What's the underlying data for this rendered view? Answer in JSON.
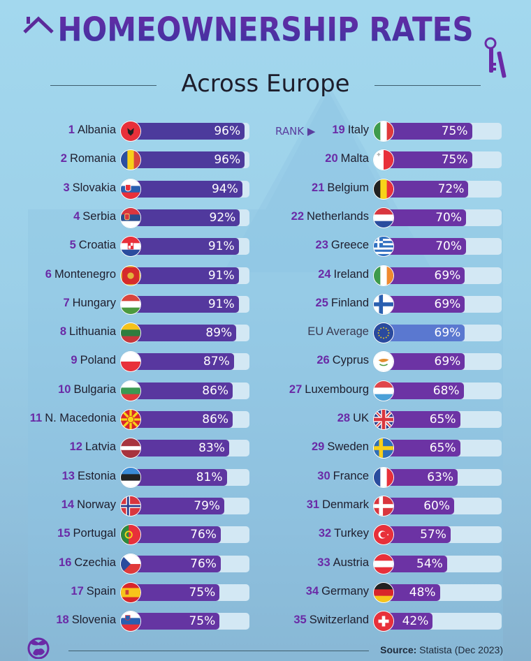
{
  "header": {
    "title": "HOMEOWNERSHIP RATES",
    "subtitle": "Across Europe"
  },
  "rank_hint": "RANK",
  "footer": {
    "source_label": "Source:",
    "source_text": "Statista (Dec 2023)"
  },
  "colors": {
    "bar_top": "#4c3a9c",
    "bar_bottom": "#6c33a4",
    "eu_bar": "#5a78d0",
    "track": "#d3e8f4",
    "rank_number": "#6a2aa6",
    "background": "#9bcfe8"
  },
  "chart_data": {
    "type": "bar",
    "orientation": "horizontal",
    "title": "HOMEOWNERSHIP RATES",
    "subtitle": "Across Europe",
    "unit": "%",
    "xlim": [
      0,
      100
    ],
    "source": "Statista (Dec 2023)",
    "left_column": [
      {
        "rank": "1",
        "country": "Albania",
        "value": 96,
        "label": "96%",
        "flag": "albania-flag"
      },
      {
        "rank": "2",
        "country": "Romania",
        "value": 96,
        "label": "96%",
        "flag": "romania-flag"
      },
      {
        "rank": "3",
        "country": "Slovakia",
        "value": 94,
        "label": "94%",
        "flag": "slovakia-flag"
      },
      {
        "rank": "4",
        "country": "Serbia",
        "value": 92,
        "label": "92%",
        "flag": "serbia-flag"
      },
      {
        "rank": "5",
        "country": "Croatia",
        "value": 91,
        "label": "91%",
        "flag": "croatia-flag"
      },
      {
        "rank": "6",
        "country": "Montenegro",
        "value": 91,
        "label": "91%",
        "flag": "montenegro-flag"
      },
      {
        "rank": "7",
        "country": "Hungary",
        "value": 91,
        "label": "91%",
        "flag": "hungary-flag"
      },
      {
        "rank": "8",
        "country": "Lithuania",
        "value": 89,
        "label": "89%",
        "flag": "lithuania-flag"
      },
      {
        "rank": "9",
        "country": "Poland",
        "value": 87,
        "label": "87%",
        "flag": "poland-flag"
      },
      {
        "rank": "10",
        "country": "Bulgaria",
        "value": 86,
        "label": "86%",
        "flag": "bulgaria-flag"
      },
      {
        "rank": "11",
        "country": "N. Macedonia",
        "value": 86,
        "label": "86%",
        "flag": "north-macedonia-flag"
      },
      {
        "rank": "12",
        "country": "Latvia",
        "value": 83,
        "label": "83%",
        "flag": "latvia-flag"
      },
      {
        "rank": "13",
        "country": "Estonia",
        "value": 81,
        "label": "81%",
        "flag": "estonia-flag"
      },
      {
        "rank": "14",
        "country": "Norway",
        "value": 79,
        "label": "79%",
        "flag": "norway-flag"
      },
      {
        "rank": "15",
        "country": "Portugal",
        "value": 76,
        "label": "76%",
        "flag": "portugal-flag"
      },
      {
        "rank": "16",
        "country": "Czechia",
        "value": 76,
        "label": "76%",
        "flag": "czechia-flag"
      },
      {
        "rank": "17",
        "country": "Spain",
        "value": 75,
        "label": "75%",
        "flag": "spain-flag"
      },
      {
        "rank": "18",
        "country": "Slovenia",
        "value": 75,
        "label": "75%",
        "flag": "slovenia-flag"
      }
    ],
    "right_column": [
      {
        "rank": "19",
        "country": "Italy",
        "value": 75,
        "label": "75%",
        "flag": "italy-flag"
      },
      {
        "rank": "20",
        "country": "Malta",
        "value": 75,
        "label": "75%",
        "flag": "malta-flag"
      },
      {
        "rank": "21",
        "country": "Belgium",
        "value": 72,
        "label": "72%",
        "flag": "belgium-flag"
      },
      {
        "rank": "22",
        "country": "Netherlands",
        "value": 70,
        "label": "70%",
        "flag": "netherlands-flag"
      },
      {
        "rank": "23",
        "country": "Greece",
        "value": 70,
        "label": "70%",
        "flag": "greece-flag"
      },
      {
        "rank": "24",
        "country": "Ireland",
        "value": 69,
        "label": "69%",
        "flag": "ireland-flag"
      },
      {
        "rank": "25",
        "country": "Finland",
        "value": 69,
        "label": "69%",
        "flag": "finland-flag"
      },
      {
        "rank": "",
        "country": "EU Average",
        "value": 69,
        "label": "69%",
        "flag": "eu-flag",
        "is_average": true
      },
      {
        "rank": "26",
        "country": "Cyprus",
        "value": 69,
        "label": "69%",
        "flag": "cyprus-flag"
      },
      {
        "rank": "27",
        "country": "Luxembourg",
        "value": 68,
        "label": "68%",
        "flag": "luxembourg-flag"
      },
      {
        "rank": "28",
        "country": "UK",
        "value": 65,
        "label": "65%",
        "flag": "uk-flag"
      },
      {
        "rank": "29",
        "country": "Sweden",
        "value": 65,
        "label": "65%",
        "flag": "sweden-flag"
      },
      {
        "rank": "30",
        "country": "France",
        "value": 63,
        "label": "63%",
        "flag": "france-flag"
      },
      {
        "rank": "31",
        "country": "Denmark",
        "value": 60,
        "label": "60%",
        "flag": "denmark-flag"
      },
      {
        "rank": "32",
        "country": "Turkey",
        "value": 57,
        "label": "57%",
        "flag": "turkey-flag"
      },
      {
        "rank": "33",
        "country": "Austria",
        "value": 54,
        "label": "54%",
        "flag": "austria-flag"
      },
      {
        "rank": "34",
        "country": "Germany",
        "value": 48,
        "label": "48%",
        "flag": "germany-flag"
      },
      {
        "rank": "35",
        "country": "Switzerland",
        "value": 42,
        "label": "42%",
        "flag": "switzerland-flag"
      }
    ]
  }
}
